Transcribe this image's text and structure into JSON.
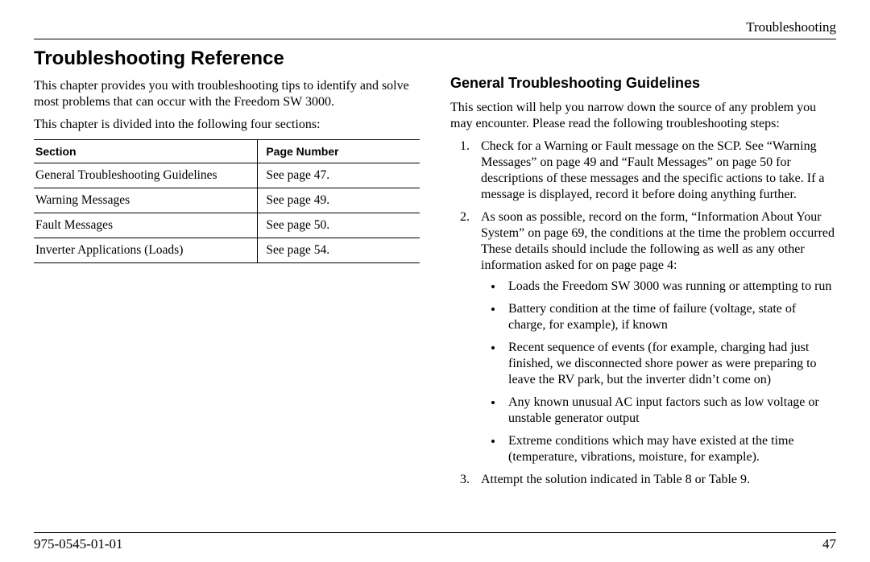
{
  "header": {
    "running_head": "Troubleshooting"
  },
  "left": {
    "title": "Troubleshooting Reference",
    "intro1": "This chapter provides you with troubleshooting tips to identify and solve most problems that can occur with the Freedom SW 3000.",
    "intro2": "This chapter is divided into the following four sections:",
    "table": {
      "col1": "Section",
      "col2": "Page Number",
      "rows": [
        {
          "section": "General Troubleshooting Guidelines",
          "page": "See page 47."
        },
        {
          "section": "Warning Messages",
          "page": "See page 49."
        },
        {
          "section": "Fault Messages",
          "page": "See page 50."
        },
        {
          "section": "Inverter Applications (Loads)",
          "page": "See page 54."
        }
      ]
    }
  },
  "right": {
    "subtitle": "General Troubleshooting Guidelines",
    "para": "This section will help you narrow down the source of any problem you may encounter. Please read the following troubleshooting steps:",
    "steps": {
      "s1": "Check for a Warning or Fault message on the SCP. See “Warning Messages” on page 49 and “Fault Messages” on page 50 for descriptions of these messages and the specific actions to take. If a message is displayed, record it before doing anything further.",
      "s2": "As soon as possible, record on the form, “Information About Your System” on page 69, the conditions at the time the problem occurred These details should include the following as well as any other information asked for on page page 4:",
      "s3": "Attempt the solution indicated in Table 8 or Table 9."
    },
    "bullets": {
      "b1": "Loads the Freedom SW 3000 was running or attempting to run",
      "b2": "Battery condition at the time of failure (voltage, state of charge, for example), if known",
      "b3": "Recent sequence of events (for example, charging had just finished, we disconnected shore power as were preparing to leave the RV park, but the inverter didn’t come on)",
      "b4": "Any known unusual AC input factors such as low voltage or unstable generator output",
      "b5": "Extreme conditions which may have existed at the time (temperature, vibrations, moisture, for example)."
    }
  },
  "footer": {
    "doc_number": "975-0545-01-01",
    "page_number": "47"
  }
}
